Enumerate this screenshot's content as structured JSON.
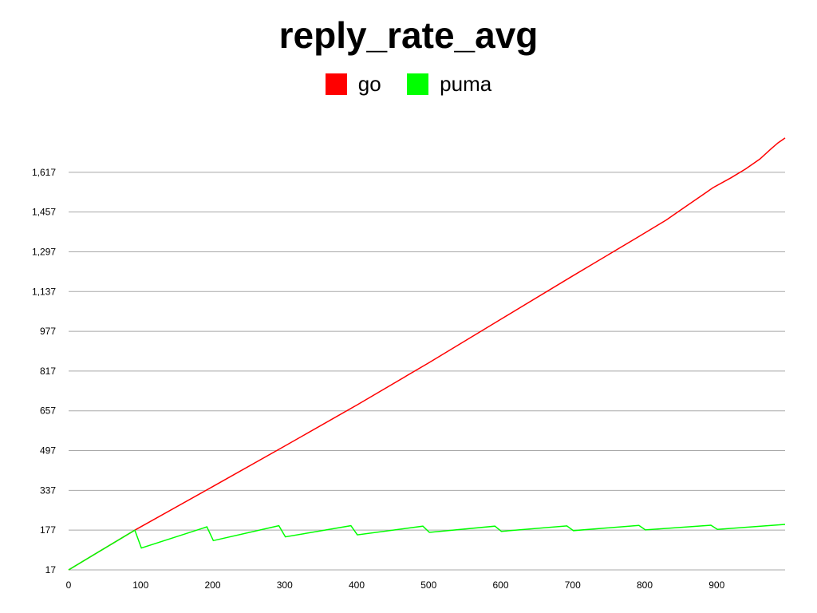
{
  "chart_data": {
    "type": "line",
    "title": "reply_rate_avg",
    "xlabel": "",
    "ylabel": "",
    "xlim": [
      0,
      995
    ],
    "ylim": [
      17,
      1777
    ],
    "x_ticks": [
      0,
      100,
      200,
      300,
      400,
      500,
      600,
      700,
      800,
      900
    ],
    "x_tick_labels": [
      "0",
      "100",
      "200",
      "300",
      "400",
      "500",
      "600",
      "700",
      "800",
      "900"
    ],
    "y_ticks": [
      17,
      177,
      337,
      497,
      657,
      817,
      977,
      1137,
      1297,
      1457,
      1617
    ],
    "y_tick_labels": [
      "17",
      "177",
      "337",
      "497",
      "657",
      "817",
      "977",
      "1,137",
      "1,297",
      "1,457",
      "1,617"
    ],
    "grid": true,
    "legend_position": "top-center",
    "series": [
      {
        "name": "go",
        "color": "#ff0000",
        "x": [
          0,
          92,
          200,
          300,
          400,
          500,
          600,
          700,
          790,
          830,
          850,
          880,
          895,
          920,
          940,
          960,
          975,
          985,
          995
        ],
        "y": [
          17,
          177,
          352,
          515,
          680,
          850,
          1025,
          1200,
          1355,
          1425,
          1465,
          1525,
          1555,
          1595,
          1630,
          1670,
          1710,
          1735,
          1755
        ]
      },
      {
        "name": "puma",
        "color": "#00ff00",
        "x": [
          0,
          92,
          101,
          192,
          201,
          292,
          301,
          392,
          401,
          492,
          501,
          592,
          601,
          692,
          701,
          792,
          801,
          892,
          901,
          995
        ],
        "y": [
          17,
          177,
          105,
          190,
          135,
          195,
          150,
          195,
          158,
          193,
          168,
          193,
          172,
          194,
          175,
          196,
          178,
          197,
          180,
          200
        ]
      }
    ]
  }
}
